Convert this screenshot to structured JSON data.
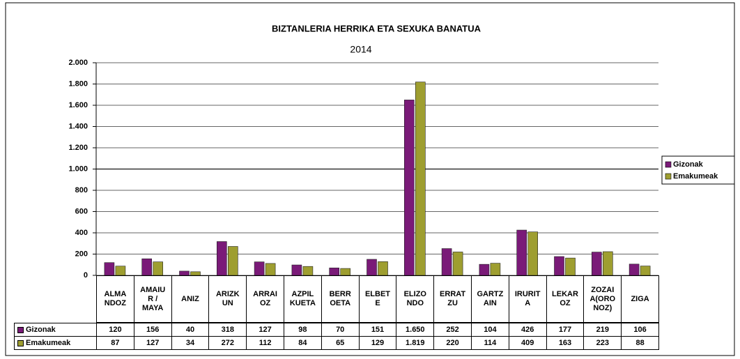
{
  "chart_data": {
    "type": "bar",
    "title": "BIZTANLERIA HERRIKA ETA SEXUKA BANATUA",
    "subtitle": "2014",
    "categories": [
      "ALMA\nNDOZ",
      "AMAIU\nR /\nMAYA",
      "ANIZ",
      "ARIZK\nUN",
      "ARRAI\nOZ",
      "AZPIL\nKUETA",
      "BERR\nOETA",
      "ELBET\nE",
      "ELIZO\nNDO",
      "ERRAT\nZU",
      "GARTZ\nAIN",
      "IRURIT\nA",
      "LEKAR\nOZ",
      "ZOZAI\nA(ORO\nNOZ)",
      "ZIGA"
    ],
    "series": [
      {
        "name": "Gizonak",
        "color": "#7a1a78",
        "values": [
          120,
          156,
          40,
          318,
          127,
          98,
          70,
          151,
          1650,
          252,
          104,
          426,
          177,
          219,
          106
        ],
        "value_labels": [
          "120",
          "156",
          "40",
          "318",
          "127",
          "98",
          "70",
          "151",
          "1.650",
          "252",
          "104",
          "426",
          "177",
          "219",
          "106"
        ]
      },
      {
        "name": "Emakumeak",
        "color": "#9e9e30",
        "values": [
          87,
          127,
          34,
          272,
          112,
          84,
          65,
          129,
          1819,
          220,
          114,
          409,
          163,
          223,
          88
        ],
        "value_labels": [
          "87",
          "127",
          "34",
          "272",
          "112",
          "84",
          "65",
          "129",
          "1.819",
          "220",
          "114",
          "409",
          "163",
          "223",
          "88"
        ]
      }
    ],
    "ylim": [
      0,
      2000
    ],
    "yticks": [
      0,
      200,
      400,
      600,
      800,
      {
        "value": 1000,
        "label": "1.000"
      },
      {
        "value": 1200,
        "label": "1.200"
      },
      {
        "value": 1400,
        "label": "1.400"
      },
      {
        "value": 1600,
        "label": "1.600"
      },
      {
        "value": 1800,
        "label": "1.800"
      },
      {
        "value": 2000,
        "label": "2.000"
      }
    ],
    "grid": true,
    "legend": "right"
  }
}
